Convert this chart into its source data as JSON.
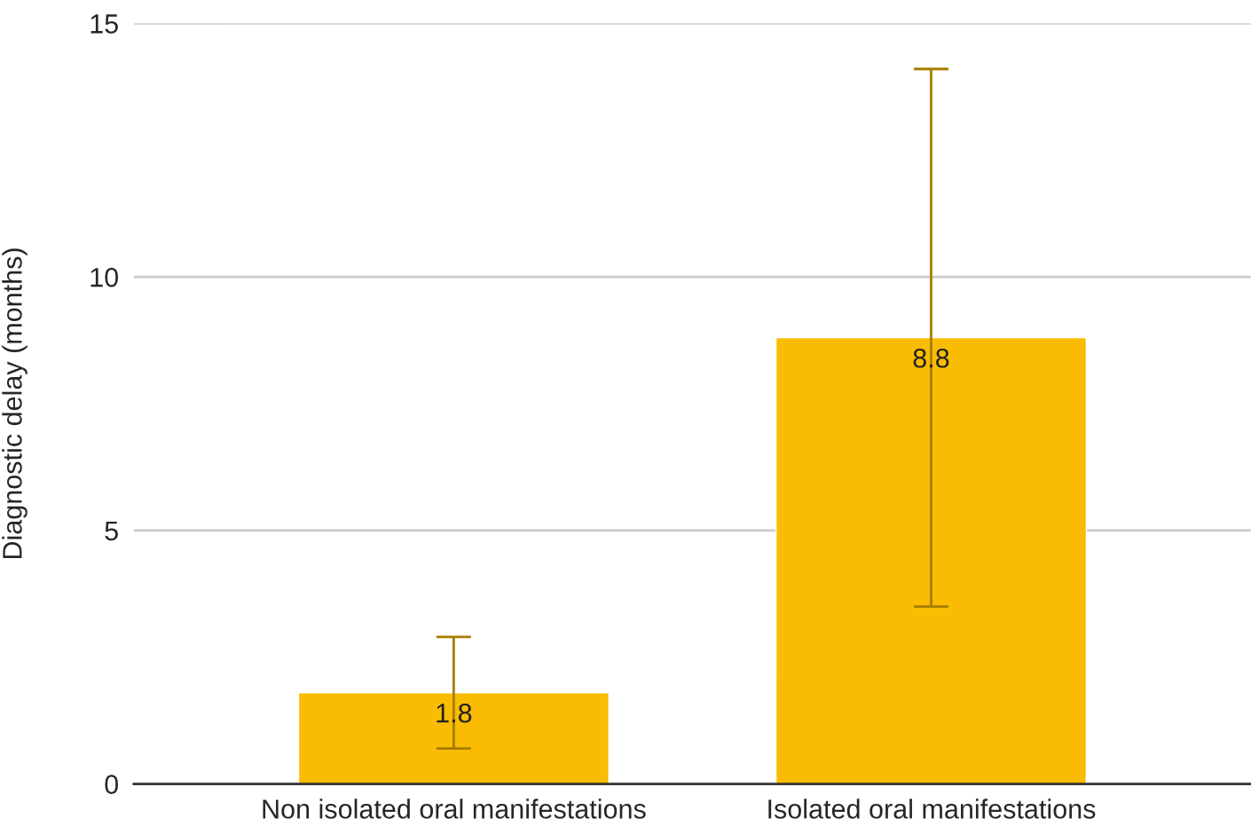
{
  "chart_data": {
    "type": "bar",
    "ylabel": "Diagnostic delay (months)",
    "categories": [
      "Non isolated oral manifestations",
      "Isolated oral manifestations"
    ],
    "values": [
      1.8,
      8.8
    ],
    "color": "#f9bc02",
    "errors": [
      [
        0.7,
        2.9
      ],
      [
        3.5,
        14.1
      ]
    ],
    "ylim": [
      0,
      15
    ],
    "yticks": [
      0,
      5,
      10,
      15
    ],
    "grid": "y",
    "data_labels": true,
    "legend": false
  }
}
